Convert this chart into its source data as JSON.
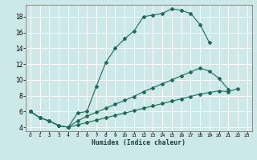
{
  "xlabel": "Humidex (Indice chaleur)",
  "bg_color": "#cde8e8",
  "grid_color": "#ffffff",
  "line_color": "#1a6b5a",
  "xlim": [
    -0.5,
    23.5
  ],
  "ylim": [
    3.5,
    19.5
  ],
  "xticks": [
    0,
    1,
    2,
    3,
    4,
    5,
    6,
    7,
    8,
    9,
    10,
    11,
    12,
    13,
    14,
    15,
    16,
    17,
    18,
    19,
    20,
    21,
    22,
    23
  ],
  "yticks": [
    4,
    6,
    8,
    10,
    12,
    14,
    16,
    18
  ],
  "curve1_x": [
    0,
    1,
    2,
    3,
    4,
    5,
    6,
    7,
    8,
    9,
    10,
    11,
    12,
    13,
    14,
    15,
    16,
    17,
    18,
    19
  ],
  "curve1_y": [
    6.0,
    5.2,
    4.8,
    4.2,
    4.0,
    5.8,
    6.0,
    9.2,
    12.2,
    14.0,
    15.2,
    16.2,
    18.0,
    18.2,
    18.4,
    19.0,
    18.8,
    18.4,
    17.0,
    14.7
  ],
  "curve2_x": [
    0,
    1,
    2,
    3,
    4,
    5,
    6,
    7,
    8,
    9,
    10,
    11,
    12,
    13,
    14,
    15,
    16,
    17,
    18,
    19,
    20,
    21
  ],
  "curve2_y": [
    6.0,
    5.2,
    4.8,
    4.2,
    4.0,
    4.8,
    5.4,
    5.9,
    6.4,
    6.9,
    7.4,
    7.9,
    8.5,
    9.0,
    9.5,
    10.0,
    10.5,
    11.0,
    11.5,
    11.1,
    10.2,
    8.8
  ],
  "curve3_x": [
    0,
    1,
    2,
    3,
    4,
    5,
    6,
    7,
    8,
    9,
    10,
    11,
    12,
    13,
    14,
    15,
    16,
    17,
    18,
    19,
    20,
    21,
    22
  ],
  "curve3_y": [
    6.0,
    5.2,
    4.8,
    4.2,
    4.0,
    4.3,
    4.6,
    4.9,
    5.2,
    5.5,
    5.8,
    6.1,
    6.4,
    6.7,
    7.0,
    7.3,
    7.6,
    7.9,
    8.2,
    8.4,
    8.6,
    8.5,
    8.9
  ]
}
